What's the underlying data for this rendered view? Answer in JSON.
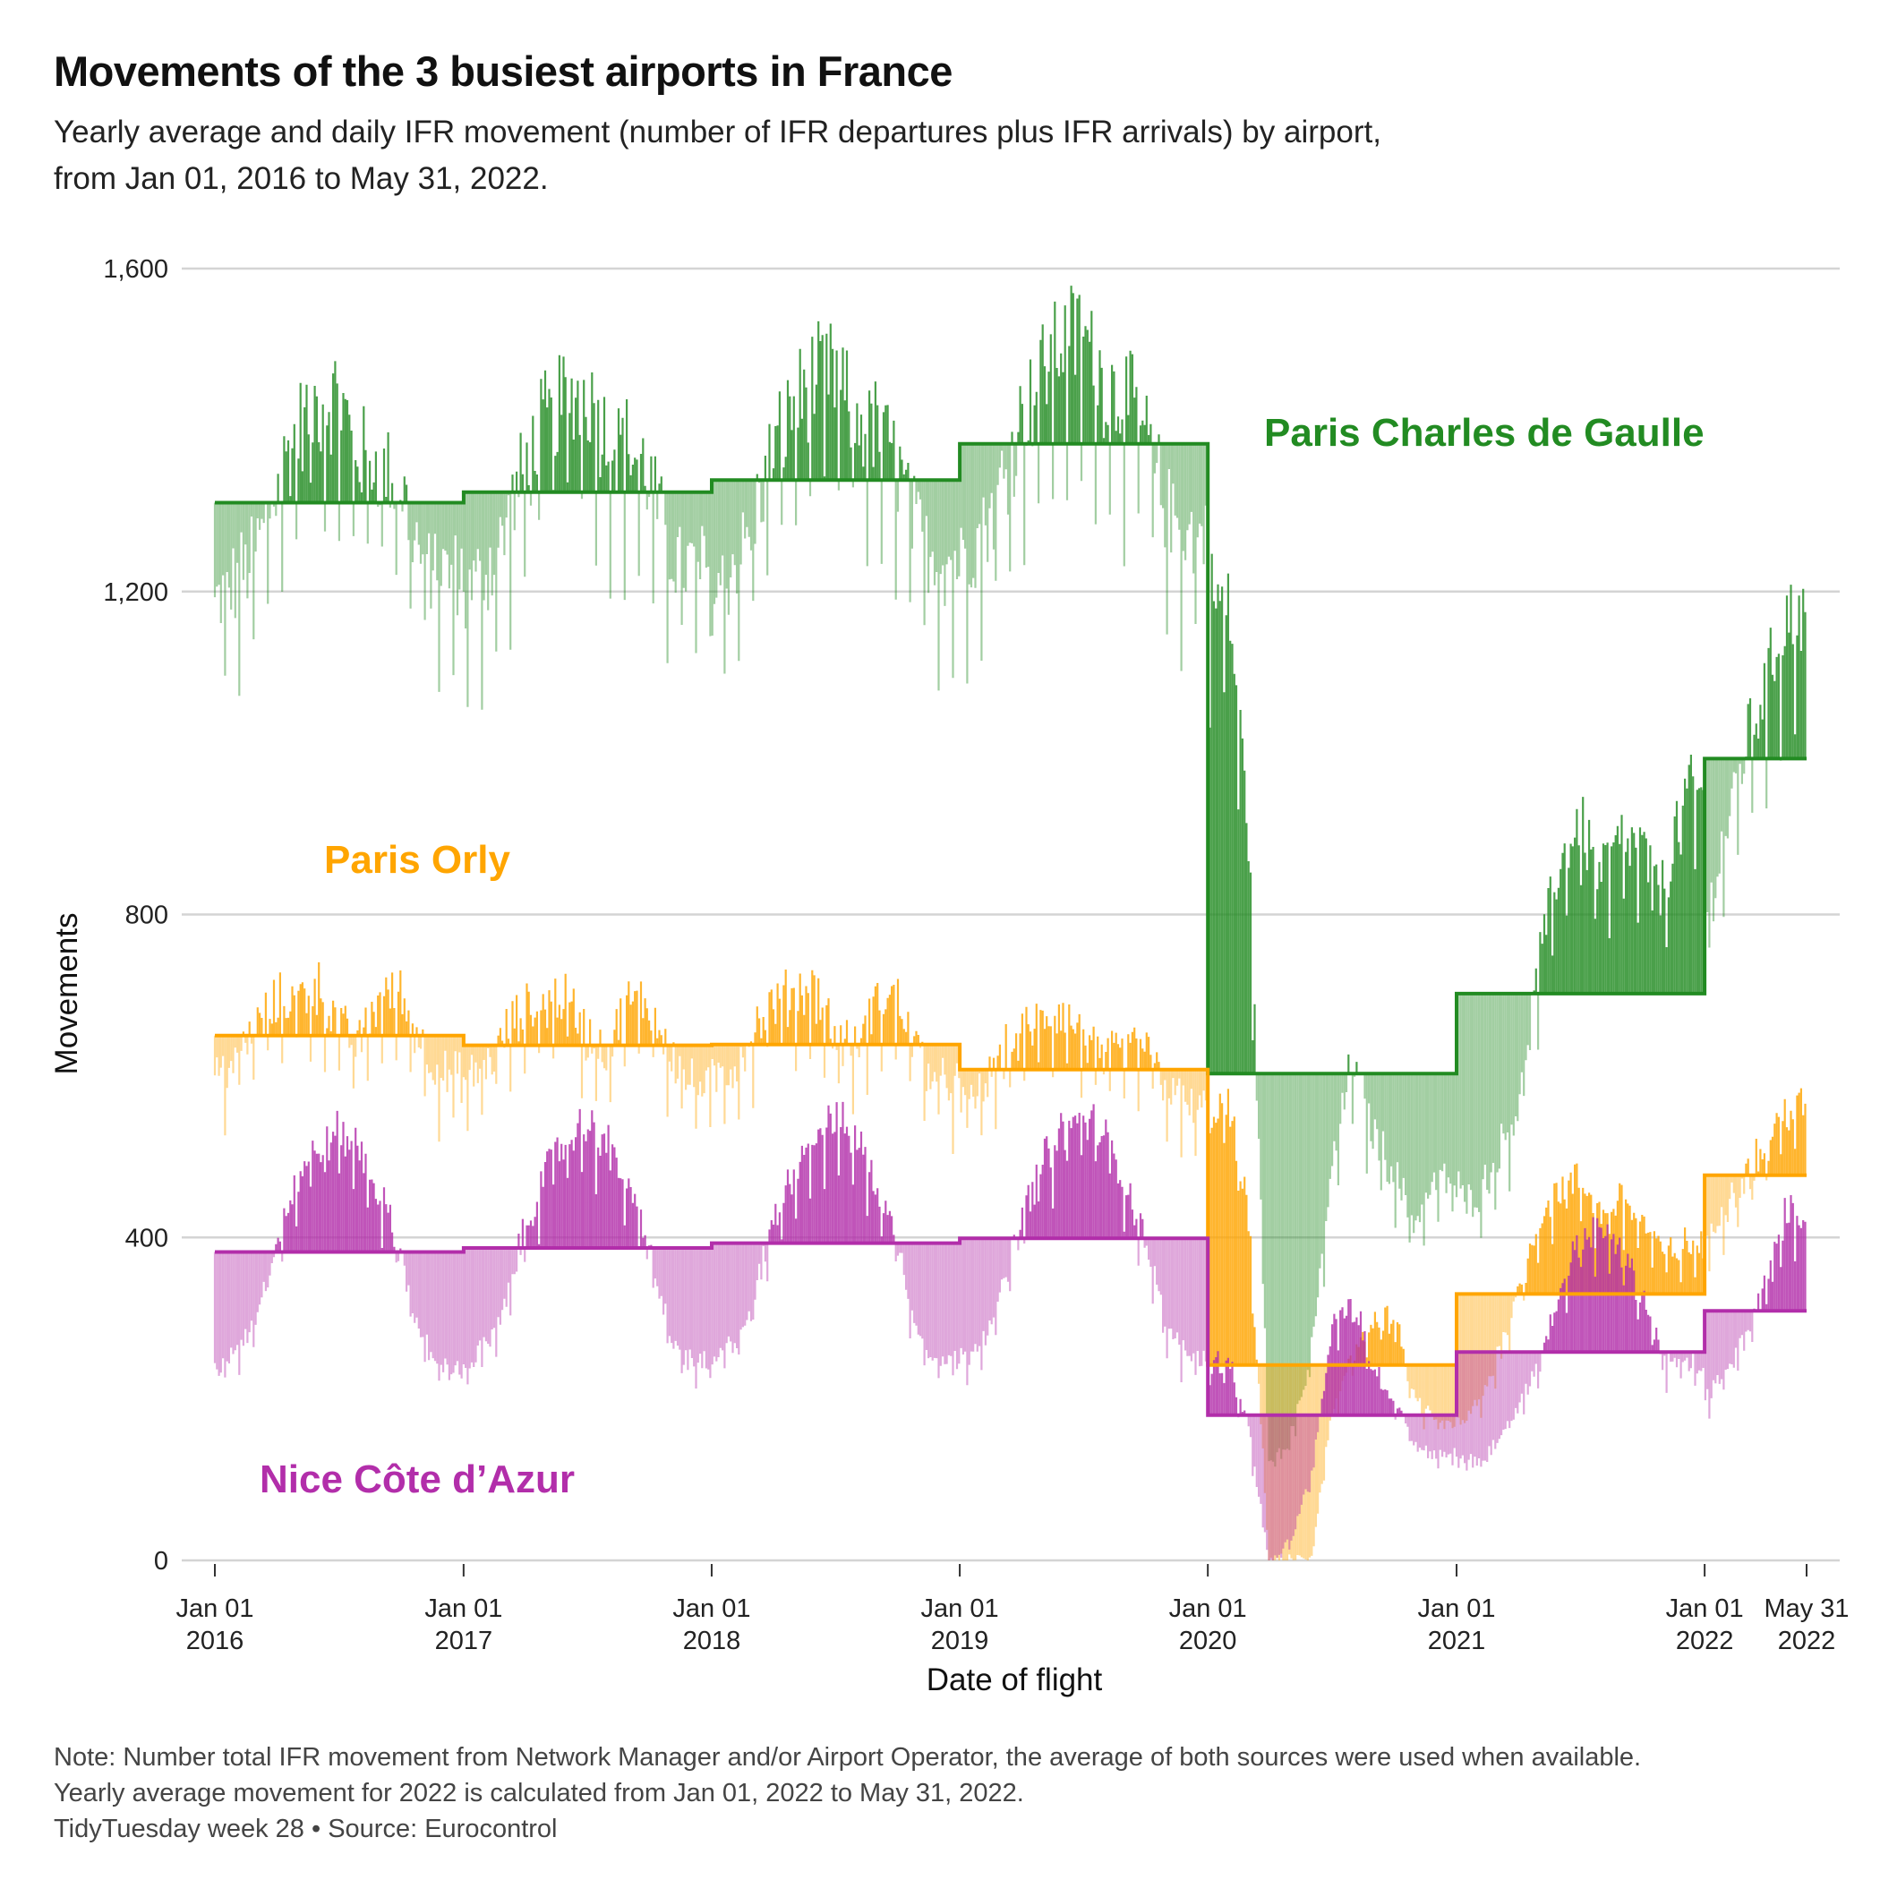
{
  "title": "Movements of the 3 busiest airports in France",
  "subtitle_line1": "Yearly average and daily IFR movement (number of IFR departures plus IFR arrivals) by airport,",
  "subtitle_line2": "from Jan 01, 2016 to May 31, 2022.",
  "caption": {
    "line1": "Note: Number total IFR movement from Network Manager and/or Airport Operator, the average of both sources were used when available.",
    "line2": "Yearly average movement for 2022 is calculated from Jan 01, 2022 to May 31, 2022.",
    "line3": "TidyTuesday week 28 • Source: Eurocontrol"
  },
  "chart_data": {
    "type": "line",
    "xlabel": "Date of flight",
    "ylabel": "Movements",
    "x_range": [
      "2016-01-01",
      "2022-05-31"
    ],
    "ylim": [
      0,
      1600
    ],
    "y_ticks": [
      0,
      400,
      800,
      1200,
      1600
    ],
    "y_tick_labels": [
      "0",
      "400",
      "800",
      "1,200",
      "1,600"
    ],
    "x_ticks": [
      {
        "date": "2016-01-01",
        "line1": "Jan 01",
        "line2": "2016"
      },
      {
        "date": "2017-01-01",
        "line1": "Jan 01",
        "line2": "2017"
      },
      {
        "date": "2018-01-01",
        "line1": "Jan 01",
        "line2": "2018"
      },
      {
        "date": "2019-01-01",
        "line1": "Jan 01",
        "line2": "2019"
      },
      {
        "date": "2020-01-01",
        "line1": "Jan 01",
        "line2": "2020"
      },
      {
        "date": "2021-01-01",
        "line1": "Jan 01",
        "line2": "2021"
      },
      {
        "date": "2022-01-01",
        "line1": "Jan 01",
        "line2": "2022"
      },
      {
        "date": "2022-05-31",
        "line1": "May 31",
        "line2": "2022"
      }
    ],
    "grid": "horizontal",
    "series": [
      {
        "name": "Paris Charles de Gaulle",
        "color": "#228B22",
        "yearly_average": [
          {
            "year": 2016,
            "value": 1310
          },
          {
            "year": 2017,
            "value": 1323
          },
          {
            "year": 2018,
            "value": 1338
          },
          {
            "year": 2019,
            "value": 1383
          },
          {
            "year": 2020,
            "value": 603
          },
          {
            "year": 2021,
            "value": 702
          },
          {
            "year": 2022,
            "value": 993
          }
        ],
        "monthly_typical": [
          [
            1180,
            1210,
            1250,
            1330,
            1400,
            1430,
            1440,
            1370,
            1360,
            1330,
            1240,
            1220
          ],
          [
            1190,
            1220,
            1270,
            1350,
            1410,
            1440,
            1450,
            1390,
            1380,
            1340,
            1250,
            1230
          ],
          [
            1200,
            1230,
            1280,
            1370,
            1430,
            1460,
            1470,
            1410,
            1400,
            1360,
            1270,
            1240
          ],
          [
            1240,
            1270,
            1330,
            1410,
            1470,
            1510,
            1520,
            1460,
            1440,
            1400,
            1300,
            1270
          ],
          [
            1200,
            1180,
            900,
            120,
            150,
            250,
            480,
            620,
            530,
            480,
            420,
            470
          ],
          [
            460,
            450,
            500,
            560,
            730,
            860,
            920,
            850,
            890,
            880,
            830,
            950
          ],
          [
            790,
            900,
            1010,
            1080,
            1170
          ]
        ]
      },
      {
        "name": "Paris Orly",
        "color": "#FFA500",
        "yearly_average": [
          {
            "year": 2016,
            "value": 650
          },
          {
            "year": 2017,
            "value": 638
          },
          {
            "year": 2018,
            "value": 639
          },
          {
            "year": 2019,
            "value": 608
          },
          {
            "year": 2020,
            "value": 242
          },
          {
            "year": 2021,
            "value": 330
          },
          {
            "year": 2022,
            "value": 477
          }
        ],
        "monthly_typical": [
          [
            600,
            620,
            660,
            690,
            700,
            710,
            660,
            640,
            700,
            700,
            640,
            600
          ],
          [
            590,
            610,
            650,
            680,
            690,
            700,
            650,
            630,
            690,
            690,
            630,
            590
          ],
          [
            590,
            610,
            650,
            690,
            700,
            710,
            650,
            630,
            690,
            700,
            630,
            590
          ],
          [
            560,
            580,
            620,
            650,
            670,
            680,
            650,
            620,
            630,
            640,
            590,
            560
          ],
          [
            560,
            560,
            420,
            0,
            0,
            0,
            180,
            260,
            290,
            300,
            200,
            170
          ],
          [
            170,
            190,
            250,
            330,
            420,
            460,
            470,
            430,
            450,
            420,
            380,
            390
          ],
          [
            390,
            440,
            480,
            510,
            560
          ]
        ]
      },
      {
        "name": "Nice Côte d’Azur",
        "color": "#B22EAA",
        "yearly_average": [
          {
            "year": 2016,
            "value": 382
          },
          {
            "year": 2017,
            "value": 387
          },
          {
            "year": 2018,
            "value": 393
          },
          {
            "year": 2019,
            "value": 399
          },
          {
            "year": 2020,
            "value": 180
          },
          {
            "year": 2021,
            "value": 258
          },
          {
            "year": 2022,
            "value": 309
          }
        ],
        "monthly_typical": [
          [
            230,
            260,
            300,
            400,
            470,
            510,
            530,
            510,
            450,
            380,
            270,
            240
          ],
          [
            235,
            265,
            305,
            410,
            480,
            520,
            540,
            520,
            460,
            390,
            275,
            245
          ],
          [
            240,
            270,
            310,
            415,
            485,
            525,
            545,
            525,
            465,
            395,
            280,
            250
          ],
          [
            245,
            275,
            320,
            420,
            490,
            530,
            550,
            530,
            470,
            400,
            285,
            255
          ],
          [
            240,
            250,
            160,
            0,
            20,
            100,
            290,
            320,
            240,
            200,
            150,
            130
          ],
          [
            130,
            120,
            150,
            190,
            240,
            330,
            400,
            410,
            380,
            330,
            250,
            240
          ],
          [
            200,
            230,
            280,
            340,
            430
          ]
        ]
      }
    ],
    "annotations": [
      {
        "text": "Paris Charles de Gaulle",
        "series": 0
      },
      {
        "text": "Paris Orly",
        "series": 1
      },
      {
        "text": "Nice Côte d’Azur",
        "series": 2
      }
    ]
  }
}
